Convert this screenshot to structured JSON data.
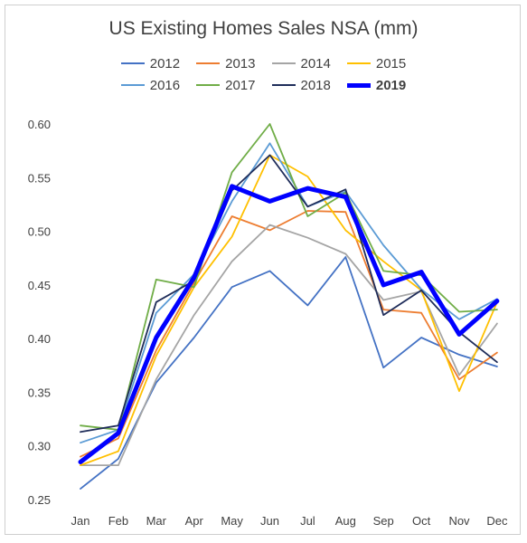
{
  "chart_data": {
    "type": "line",
    "title": "US Existing Homes Sales NSA (mm)",
    "xlabel": "",
    "ylabel": "",
    "categories": [
      "Jan",
      "Feb",
      "Mar",
      "Apr",
      "May",
      "Jun",
      "Jul",
      "Aug",
      "Sep",
      "Oct",
      "Nov",
      "Dec"
    ],
    "ylim": [
      0.25,
      0.6
    ],
    "yticks": [
      "0.25",
      "0.30",
      "0.35",
      "0.40",
      "0.45",
      "0.50",
      "0.55",
      "0.60"
    ],
    "grid": false,
    "legend_position": "top",
    "series": [
      {
        "name": "2012",
        "color": "#4472c4",
        "values": [
          0.26,
          0.288,
          0.359,
          0.401,
          0.448,
          0.463,
          0.431,
          0.476,
          0.373,
          0.401,
          0.385,
          0.374
        ]
      },
      {
        "name": "2013",
        "color": "#ed7d31",
        "values": [
          0.29,
          0.307,
          0.389,
          0.452,
          0.514,
          0.501,
          0.519,
          0.518,
          0.427,
          0.424,
          0.362,
          0.387
        ]
      },
      {
        "name": "2014",
        "color": "#a5a5a5",
        "values": [
          0.282,
          0.282,
          0.362,
          0.422,
          0.472,
          0.506,
          0.494,
          0.479,
          0.436,
          0.444,
          0.366,
          0.414
        ]
      },
      {
        "name": "2015",
        "color": "#ffc000",
        "values": [
          0.282,
          0.295,
          0.384,
          0.448,
          0.495,
          0.571,
          0.551,
          0.501,
          0.472,
          0.445,
          0.351,
          0.434
        ]
      },
      {
        "name": "2016",
        "color": "#5b9bd5",
        "values": [
          0.303,
          0.315,
          0.424,
          0.46,
          0.528,
          0.582,
          0.523,
          0.537,
          0.487,
          0.446,
          0.418,
          0.437
        ]
      },
      {
        "name": "2017",
        "color": "#70ad47",
        "values": [
          0.319,
          0.315,
          0.455,
          0.448,
          0.555,
          0.6,
          0.514,
          0.536,
          0.463,
          0.459,
          0.425,
          0.427
        ]
      },
      {
        "name": "2018",
        "color": "#1f2d5a",
        "values": [
          0.313,
          0.319,
          0.434,
          0.454,
          0.538,
          0.571,
          0.523,
          0.539,
          0.422,
          0.445,
          0.406,
          0.378
        ]
      },
      {
        "name": "2019",
        "color": "#0000ff",
        "values": [
          0.285,
          0.312,
          0.401,
          0.457,
          0.542,
          0.528,
          0.54,
          0.532,
          0.45,
          0.462,
          0.404,
          0.435
        ],
        "bold": true
      }
    ]
  }
}
